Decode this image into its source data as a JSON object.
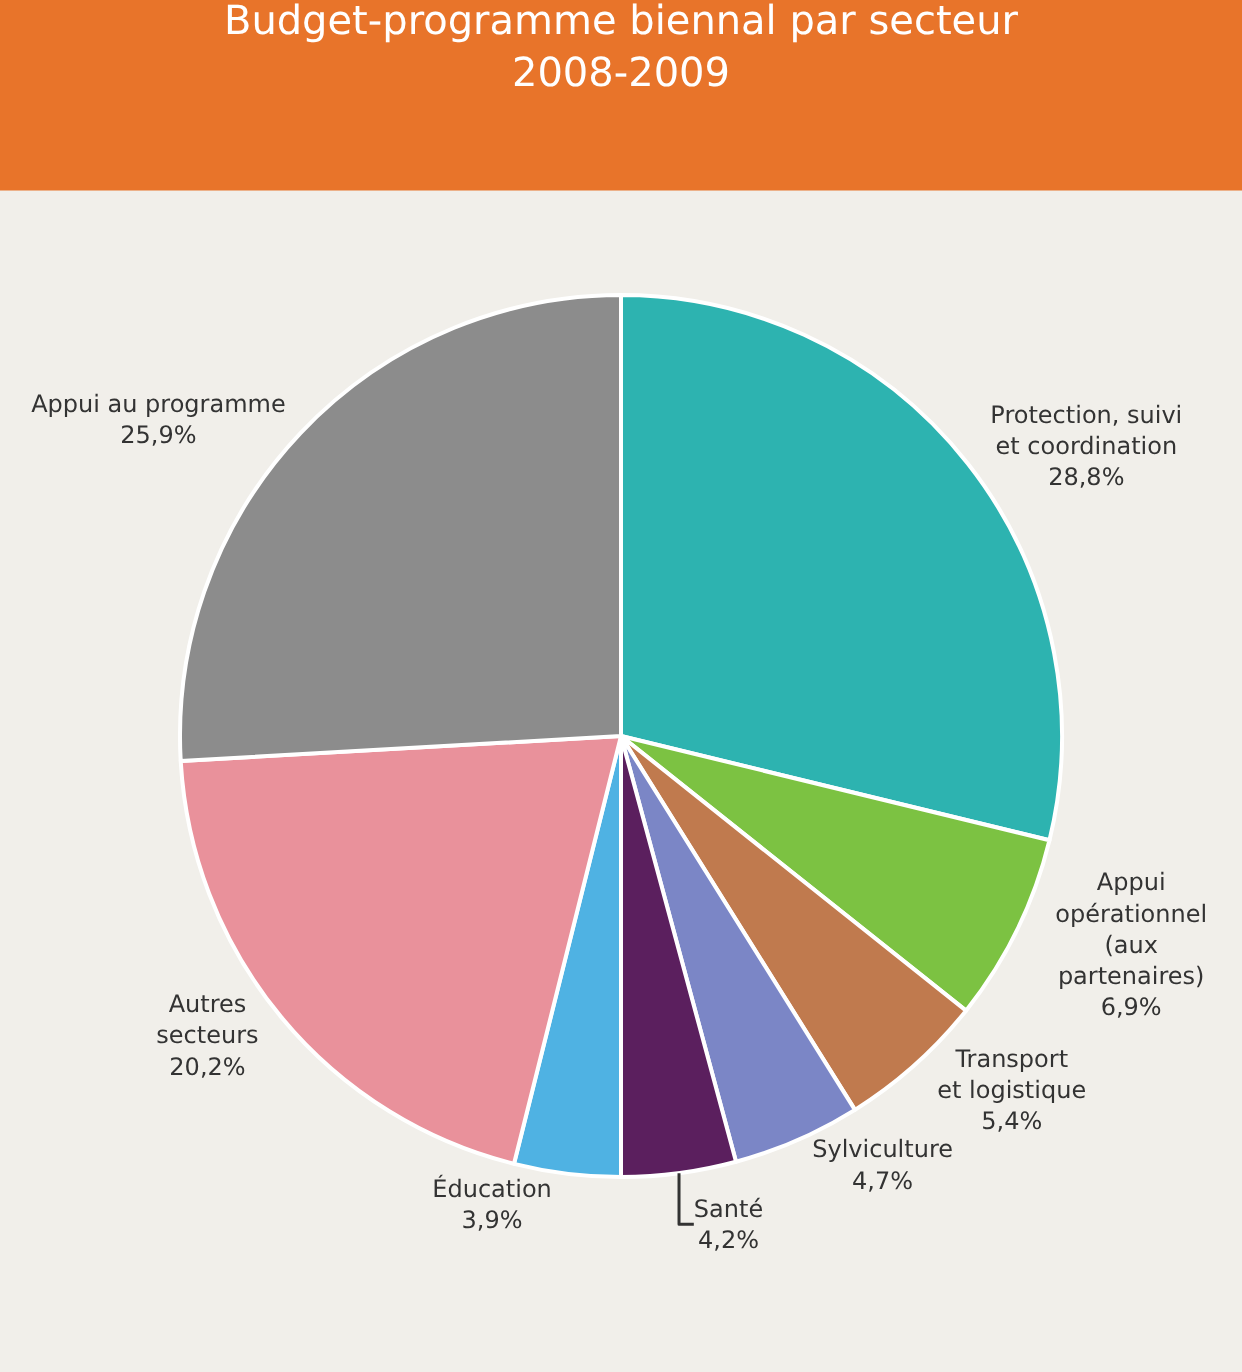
{
  "chart_data": {
    "type": "pie",
    "title": "Budget-programme biennal par secteur\n2008-2009",
    "categories": [
      "Protection, suivi\net coordination",
      "Appui\nopérationnel\n(aux\npartenaires)",
      "Transport\net logistique",
      "Sylviculture",
      "Santé",
      "Éducation",
      "Autres\nsecteurs",
      "Appui au programme"
    ],
    "values": [
      28.8,
      6.9,
      5.4,
      4.7,
      4.2,
      3.9,
      20.2,
      25.9
    ],
    "value_labels": [
      "28,8%",
      "6,9%",
      "5,4%",
      "4,7%",
      "4,2%",
      "3,9%",
      "20,2%",
      "25,9%"
    ],
    "colors": [
      "#2db3b0",
      "#7cc242",
      "#c07a4e",
      "#7b86c6",
      "#5b1f5e",
      "#4fb2e3",
      "#e9919b",
      "#8c8c8c"
    ]
  }
}
